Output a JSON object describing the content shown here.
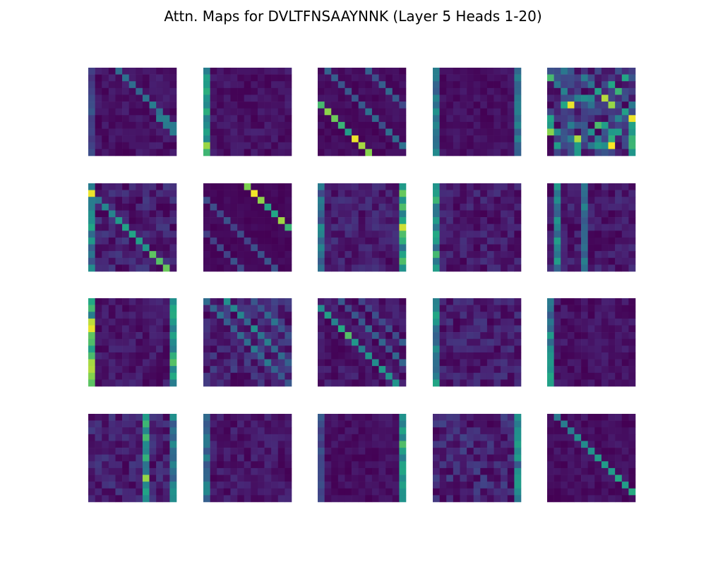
{
  "chart_data": {
    "type": "heatmap",
    "title": "Attn. Maps for DVLTFNSAAYNNK (Layer 5 Heads 1-20)",
    "sequence": "DVLTFNSAAYNNK",
    "layer": 5,
    "grid": false,
    "axes_visible": false,
    "colormap": "viridis",
    "value_range": [
      0,
      1
    ],
    "panel_layout": {
      "rows": 4,
      "cols": 5
    },
    "heads": [
      {
        "head": 1,
        "pattern": "offset-diag+col0",
        "params": {
          "offset": 4,
          "strength": 0.55,
          "col": 0,
          "colStrength": 0.25,
          "noise": 0.12,
          "seed": 1
        }
      },
      {
        "head": 2,
        "pattern": "col",
        "params": {
          "col": 0,
          "colStrength": 0.85,
          "noise": 0.12,
          "seed": 2
        }
      },
      {
        "head": 3,
        "pattern": "multi-diag",
        "params": {
          "offsets": [
            -5,
            1,
            7
          ],
          "strengths": [
            0.95,
            0.4,
            0.35
          ],
          "noise": 0.08,
          "seed": 3
        }
      },
      {
        "head": 4,
        "pattern": "two-col",
        "params": {
          "cols": [
            0,
            12
          ],
          "colStrength": [
            0.6,
            0.55
          ],
          "noise": 0.1,
          "seed": 4
        }
      },
      {
        "head": 5,
        "pattern": "scatter",
        "params": {
          "density": 0.3,
          "noise": 0.35,
          "seed": 5
        }
      },
      {
        "head": 6,
        "pattern": "diag+col",
        "params": {
          "offset": -1,
          "strength": 0.7,
          "col": 0,
          "colStrength": 0.55,
          "noise": 0.22,
          "seed": 6
        }
      },
      {
        "head": 7,
        "pattern": "multi-diag",
        "params": {
          "offsets": [
            -7,
            -2,
            6
          ],
          "strengths": [
            0.3,
            0.3,
            0.95
          ],
          "noise": 0.05,
          "seed": 7
        }
      },
      {
        "head": 8,
        "pattern": "two-col",
        "params": {
          "cols": [
            0,
            12
          ],
          "colStrength": [
            0.45,
            0.8
          ],
          "noise": 0.2,
          "seed": 8
        }
      },
      {
        "head": 9,
        "pattern": "col",
        "params": {
          "col": 0,
          "colStrength": 0.7,
          "noise": 0.18,
          "seed": 9
        }
      },
      {
        "head": 10,
        "pattern": "two-col",
        "params": {
          "cols": [
            1,
            5
          ],
          "colStrength": [
            0.6,
            0.4
          ],
          "noise": 0.18,
          "seed": 10
        }
      },
      {
        "head": 11,
        "pattern": "two-col",
        "params": {
          "cols": [
            0,
            12
          ],
          "colStrength": [
            0.9,
            0.75
          ],
          "noise": 0.15,
          "seed": 11
        }
      },
      {
        "head": 12,
        "pattern": "multi-diag",
        "params": {
          "offsets": [
            0,
            3,
            7
          ],
          "strengths": [
            0.35,
            0.45,
            0.3
          ],
          "noise": 0.25,
          "seed": 12
        }
      },
      {
        "head": 13,
        "pattern": "multi-diag",
        "params": {
          "offsets": [
            -1,
            3,
            6
          ],
          "strengths": [
            0.7,
            0.35,
            0.25
          ],
          "noise": 0.15,
          "seed": 13
        }
      },
      {
        "head": 14,
        "pattern": "col",
        "params": {
          "col": 0,
          "colStrength": 0.55,
          "noise": 0.2,
          "seed": 14
        }
      },
      {
        "head": 15,
        "pattern": "col",
        "params": {
          "col": 0,
          "colStrength": 0.65,
          "noise": 0.12,
          "seed": 15
        }
      },
      {
        "head": 16,
        "pattern": "two-col",
        "params": {
          "cols": [
            8,
            12
          ],
          "colStrength": [
            0.8,
            0.45
          ],
          "noise": 0.22,
          "seed": 16
        }
      },
      {
        "head": 17,
        "pattern": "col",
        "params": {
          "col": 0,
          "colStrength": 0.55,
          "noise": 0.15,
          "seed": 17
        }
      },
      {
        "head": 18,
        "pattern": "two-col",
        "params": {
          "cols": [
            12,
            0
          ],
          "colStrength": [
            0.75,
            0.3
          ],
          "noise": 0.1,
          "seed": 18
        }
      },
      {
        "head": 19,
        "pattern": "col",
        "params": {
          "col": 12,
          "colStrength": 0.55,
          "noise": 0.25,
          "seed": 19
        }
      },
      {
        "head": 20,
        "pattern": "diag",
        "params": {
          "offset": 1,
          "strength": 0.75,
          "noise": 0.1,
          "seed": 20
        }
      }
    ]
  }
}
